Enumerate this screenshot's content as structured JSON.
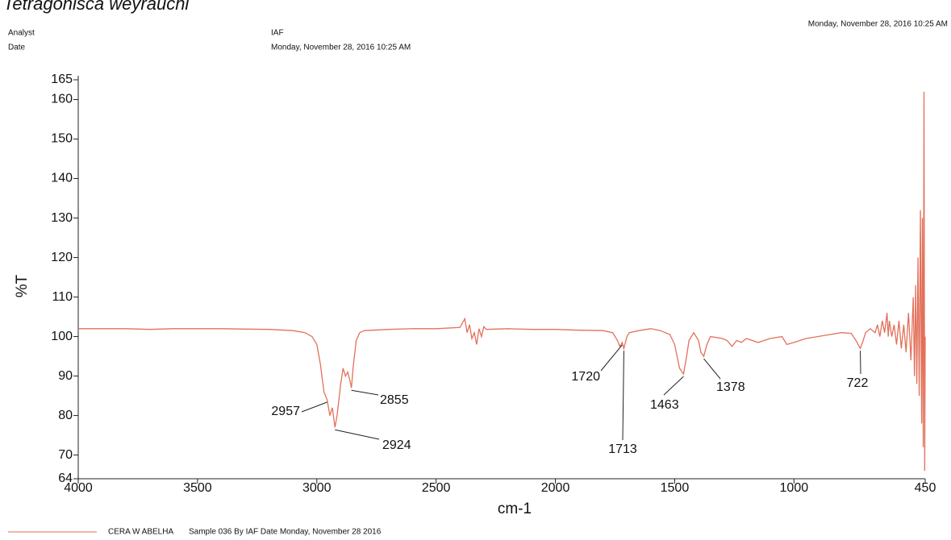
{
  "chart_data": {
    "type": "line",
    "title": "Tetragonisca weyrauchi",
    "timestamp": "Monday, November 28, 2016 10:25 AM",
    "info": [
      {
        "label": "Analyst",
        "value": "IAF"
      },
      {
        "label": "Date",
        "value": "Monday, November 28, 2016 10:25 AM"
      }
    ],
    "xlabel": "cm-1",
    "ylabel": "%T",
    "xlim": [
      4000,
      450
    ],
    "ylim": [
      64,
      165
    ],
    "xticks": [
      4000,
      3500,
      3000,
      2500,
      2000,
      1500,
      1000,
      450
    ],
    "yticks": [
      64,
      70,
      80,
      90,
      100,
      110,
      120,
      130,
      140,
      150,
      160,
      165
    ],
    "x": [
      4000,
      3900,
      3800,
      3700,
      3600,
      3500,
      3400,
      3300,
      3200,
      3100,
      3050,
      3020,
      3000,
      2985,
      2970,
      2957,
      2945,
      2935,
      2924,
      2915,
      2900,
      2890,
      2880,
      2870,
      2862,
      2855,
      2848,
      2835,
      2820,
      2800,
      2700,
      2600,
      2500,
      2400,
      2380,
      2370,
      2360,
      2350,
      2340,
      2330,
      2320,
      2310,
      2300,
      2290,
      2200,
      2100,
      2000,
      1900,
      1800,
      1760,
      1740,
      1730,
      1720,
      1713,
      1700,
      1690,
      1650,
      1600,
      1560,
      1520,
      1500,
      1480,
      1463,
      1450,
      1440,
      1420,
      1400,
      1390,
      1378,
      1365,
      1350,
      1300,
      1280,
      1260,
      1240,
      1220,
      1200,
      1150,
      1100,
      1050,
      1030,
      1000,
      950,
      900,
      850,
      800,
      760,
      740,
      722,
      710,
      700,
      680,
      660,
      650,
      640,
      630,
      620,
      610,
      605,
      600,
      590,
      580,
      570,
      560,
      550,
      540,
      530,
      520,
      510,
      500,
      495,
      490,
      485,
      480,
      475,
      470,
      465,
      462,
      458,
      455,
      452,
      450
    ],
    "series": [
      {
        "name": "CERA W ABELHA",
        "color": "#e2715a",
        "values": [
          102,
          102,
          102,
          101.8,
          102,
          102,
          102,
          101.9,
          101.8,
          101.5,
          101,
          100,
          98,
          93,
          86,
          84,
          80,
          82,
          77,
          80,
          88,
          92,
          90,
          91,
          89,
          87,
          92,
          99,
          101,
          101.5,
          101.8,
          102,
          102,
          102.3,
          104.5,
          101,
          103,
          99.5,
          101,
          98,
          102,
          100,
          102.5,
          101.8,
          102,
          101.8,
          101.8,
          101.6,
          101.5,
          101,
          99,
          97.5,
          98.5,
          97,
          100,
          101,
          101.5,
          102,
          101.5,
          100.5,
          98,
          92,
          90.5,
          95,
          99,
          101,
          99,
          96,
          95,
          98,
          100,
          99.5,
          99,
          97.5,
          99,
          98.5,
          99.5,
          98.5,
          99.5,
          100,
          98,
          98.5,
          99.5,
          100,
          100.5,
          101,
          100.8,
          99,
          97,
          99,
          101,
          102,
          101,
          103,
          100,
          104,
          101,
          106,
          100,
          104,
          100,
          103,
          98,
          104,
          97,
          103,
          96,
          106,
          94,
          110,
          90,
          113,
          88,
          120,
          85,
          132,
          78,
          130,
          72,
          162,
          66,
          100
        ]
      }
    ],
    "legend_note": "Sample 036 By IAF Date Monday, November 28 2016",
    "annotations": [
      {
        "x": 2957,
        "y": 84
      },
      {
        "x": 2855,
        "y": 87
      },
      {
        "x": 2924,
        "y": 77
      },
      {
        "x": 1720,
        "y": 98.5
      },
      {
        "x": 1713,
        "y": 97
      },
      {
        "x": 1463,
        "y": 90.5
      },
      {
        "x": 1378,
        "y": 95
      },
      {
        "x": 722,
        "y": 97
      }
    ]
  }
}
